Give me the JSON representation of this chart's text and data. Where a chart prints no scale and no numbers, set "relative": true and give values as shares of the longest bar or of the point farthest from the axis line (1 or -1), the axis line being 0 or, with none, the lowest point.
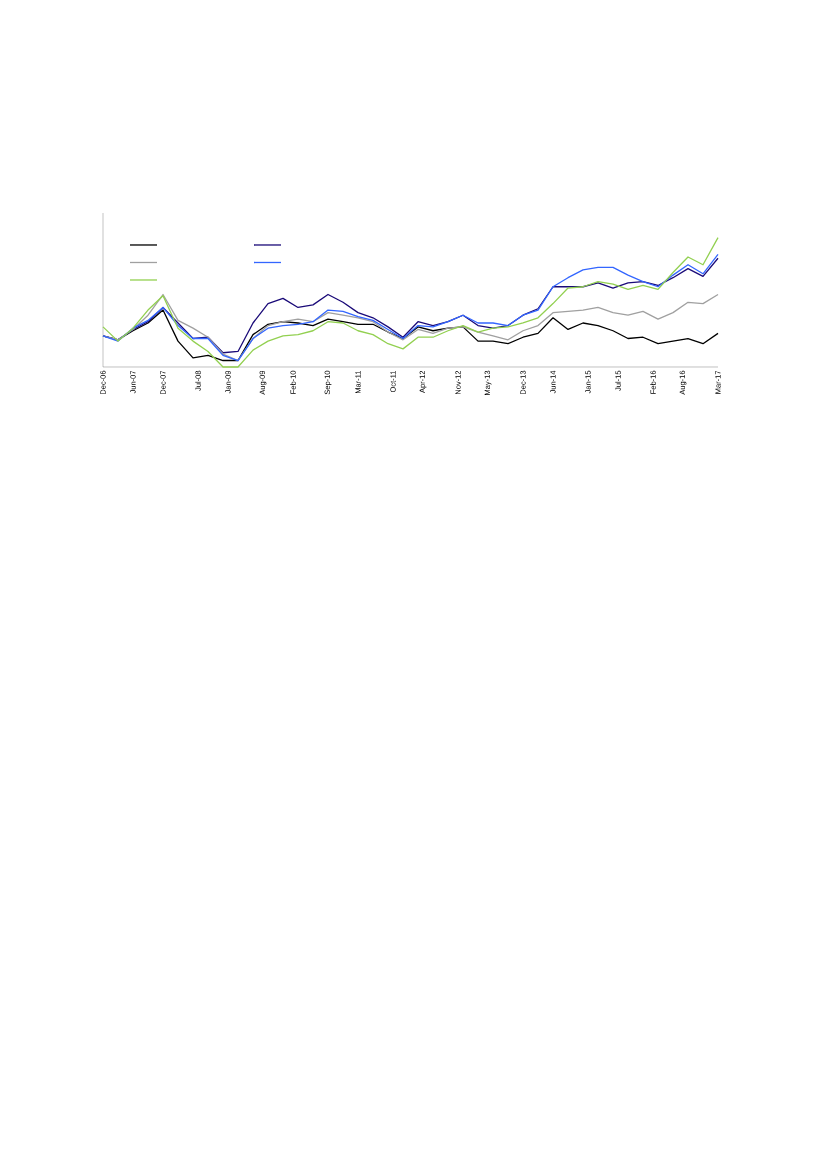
{
  "chart_data": {
    "type": "line",
    "relative": true,
    "line_style": "solid",
    "marker": "none",
    "x": [
      "2006-12",
      "2007-03",
      "2007-06",
      "2007-09",
      "2007-12",
      "2008-03",
      "2008-06",
      "2008-09",
      "2008-12",
      "2009-03",
      "2009-06",
      "2009-09",
      "2009-12",
      "2010-03",
      "2010-06",
      "2010-09",
      "2010-12",
      "2011-03",
      "2011-06",
      "2011-09",
      "2011-12",
      "2012-03",
      "2012-06",
      "2012-09",
      "2012-12",
      "2013-03",
      "2013-06",
      "2013-09",
      "2013-12",
      "2014-03",
      "2014-06",
      "2014-09",
      "2014-12",
      "2015-03",
      "2015-06",
      "2015-09",
      "2015-12",
      "2016-03",
      "2016-06",
      "2016-09",
      "2016-12",
      "2017-03"
    ],
    "xlim": [
      "2006-12",
      "2017-03"
    ],
    "xticks": [
      {
        "value": "2006-12",
        "label": "Dec-06"
      },
      {
        "value": "2007-06",
        "label": "Jun-07"
      },
      {
        "value": "2007-12",
        "label": "Dec-07"
      },
      {
        "value": "2008-07",
        "label": "Jul-08"
      },
      {
        "value": "2009-01",
        "label": "Jan-09"
      },
      {
        "value": "2009-08",
        "label": "Aug-09"
      },
      {
        "value": "2010-02",
        "label": "Feb-10"
      },
      {
        "value": "2010-09",
        "label": "Sep-10"
      },
      {
        "value": "2011-03",
        "label": "Mar-11"
      },
      {
        "value": "2011-10",
        "label": "Oct-11"
      },
      {
        "value": "2012-04",
        "label": "Apr-12"
      },
      {
        "value": "2012-11",
        "label": "Nov-12"
      },
      {
        "value": "2013-05",
        "label": "May-13"
      },
      {
        "value": "2013-12",
        "label": "Dec-13"
      },
      {
        "value": "2014-06",
        "label": "Jun-14"
      },
      {
        "value": "2015-01",
        "label": "Jan-15"
      },
      {
        "value": "2015-07",
        "label": "Jul-15"
      },
      {
        "value": "2016-02",
        "label": "Feb-16"
      },
      {
        "value": "2016-08",
        "label": "Aug-16"
      },
      {
        "value": "2017-03",
        "label": "Mar-17"
      }
    ],
    "series": [
      {
        "color": "#000000",
        "values": [
          0.24,
          0.21,
          0.28,
          0.34,
          0.44,
          0.2,
          0.07,
          0.09,
          0.05,
          0.05,
          0.25,
          0.33,
          0.35,
          0.34,
          0.32,
          0.37,
          0.35,
          0.33,
          0.33,
          0.27,
          0.22,
          0.31,
          0.28,
          0.3,
          0.31,
          0.2,
          0.2,
          0.18,
          0.23,
          0.26,
          0.38,
          0.29,
          0.34,
          0.32,
          0.28,
          0.22,
          0.23,
          0.18,
          0.2,
          0.22,
          0.18,
          0.26
        ]
      },
      {
        "color": "#1a0a78",
        "values": [
          0.24,
          0.21,
          0.29,
          0.35,
          0.46,
          0.34,
          0.22,
          0.23,
          0.11,
          0.12,
          0.34,
          0.49,
          0.53,
          0.46,
          0.48,
          0.56,
          0.5,
          0.42,
          0.38,
          0.31,
          0.23,
          0.35,
          0.32,
          0.35,
          0.4,
          0.32,
          0.3,
          0.32,
          0.4,
          0.45,
          0.62,
          0.62,
          0.62,
          0.65,
          0.61,
          0.65,
          0.66,
          0.63,
          0.69,
          0.76,
          0.7,
          0.84
        ]
      },
      {
        "color": "#a0a0a0",
        "values": [
          0.24,
          0.21,
          0.29,
          0.4,
          0.56,
          0.36,
          0.3,
          0.23,
          0.1,
          0.05,
          0.22,
          0.32,
          0.35,
          0.37,
          0.35,
          0.42,
          0.4,
          0.38,
          0.35,
          0.27,
          0.21,
          0.29,
          0.26,
          0.3,
          0.31,
          0.27,
          0.24,
          0.21,
          0.28,
          0.32,
          0.42,
          0.43,
          0.44,
          0.46,
          0.42,
          0.4,
          0.43,
          0.37,
          0.42,
          0.5,
          0.49,
          0.56
        ]
      },
      {
        "color": "#3366ff",
        "values": [
          0.24,
          0.2,
          0.3,
          0.36,
          0.46,
          0.32,
          0.22,
          0.22,
          0.09,
          0.05,
          0.22,
          0.3,
          0.32,
          0.33,
          0.35,
          0.44,
          0.43,
          0.39,
          0.36,
          0.29,
          0.22,
          0.32,
          0.31,
          0.35,
          0.4,
          0.34,
          0.34,
          0.32,
          0.4,
          0.44,
          0.62,
          0.69,
          0.75,
          0.77,
          0.77,
          0.71,
          0.66,
          0.62,
          0.71,
          0.79,
          0.72,
          0.87
        ]
      },
      {
        "color": "#92d050",
        "values": [
          0.31,
          0.2,
          0.3,
          0.44,
          0.55,
          0.3,
          0.2,
          0.12,
          0,
          0,
          0.13,
          0.2,
          0.24,
          0.25,
          0.28,
          0.35,
          0.34,
          0.28,
          0.25,
          0.18,
          0.14,
          0.23,
          0.23,
          0.28,
          0.32,
          0.27,
          0.3,
          0.31,
          0.34,
          0.38,
          0.49,
          0.61,
          0.62,
          0.66,
          0.64,
          0.6,
          0.63,
          0.6,
          0.73,
          0.85,
          0.79,
          1
        ]
      }
    ]
  }
}
